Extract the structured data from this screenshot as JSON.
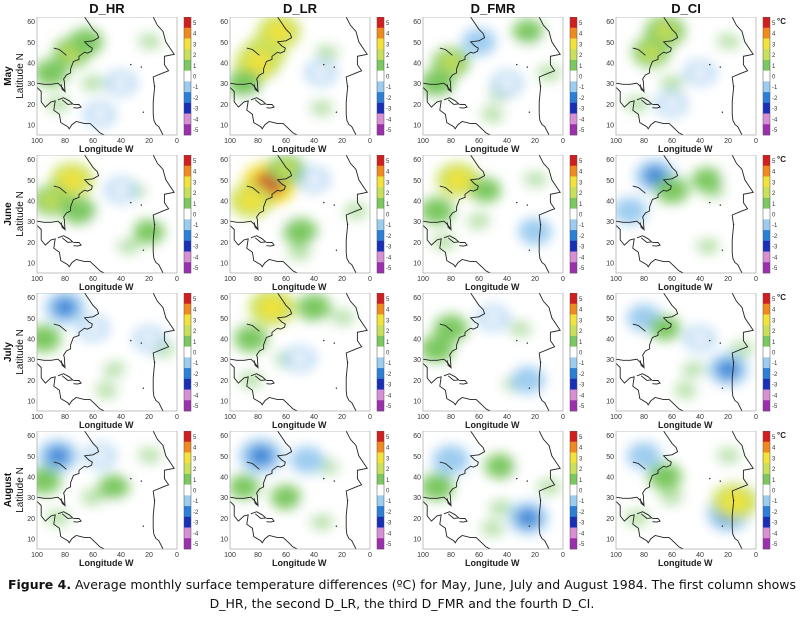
{
  "columns": [
    "D_HR",
    "D_LR",
    "D_FMR",
    "D_CI"
  ],
  "rows": [
    {
      "month": "May",
      "ylabel": "Latitude N"
    },
    {
      "month": "June",
      "ylabel": "Latitude N"
    },
    {
      "month": "July",
      "ylabel": "Latitude N"
    },
    {
      "month": "August",
      "ylabel": "Latitude N"
    }
  ],
  "xlabel": "Longitude  W",
  "lat_ticks": [
    "60",
    "50",
    "40",
    "30",
    "20",
    "10"
  ],
  "lon_ticks": [
    "100",
    "80",
    "60",
    "40",
    "20",
    "0"
  ],
  "colorbar_ticks": [
    "5",
    "4",
    "3",
    "2",
    "1",
    "0",
    "-1",
    "-2",
    "-3",
    "-4",
    "-5"
  ],
  "colorbar_unit": "°C",
  "caption": {
    "label": "Figure 4.",
    "text": " Average monthly surface temperature differences (ºC) for May, June, July and August 1984. The first column shows D_HR, the second D_LR, the third D_FMR and the fourth D_CI."
  },
  "colors": {
    "scale": [
      "#9b2fae",
      "#d98fd6",
      "#1a2fb8",
      "#2b7fd6",
      "#9cccf0",
      "#ffffff",
      "#7cc860",
      "#c8e05a",
      "#f2e23a",
      "#f08a1e",
      "#d21e1e"
    ]
  },
  "chart_data": {
    "type": "heatmap",
    "title": "Average monthly surface temperature differences (ºC), 1984",
    "xlabel": "Longitude W",
    "ylabel": "Latitude N",
    "xlim": [
      100,
      0
    ],
    "ylim": [
      5,
      62
    ],
    "clim": [
      -5,
      5
    ],
    "unit": "°C",
    "panels": [
      {
        "row": "May",
        "column": "D_HR",
        "features": [
          {
            "lon": 75,
            "lat": 45,
            "value": 1.5
          },
          {
            "lon": 90,
            "lat": 35,
            "value": 1
          },
          {
            "lon": 65,
            "lat": 50,
            "value": 1
          },
          {
            "lon": 40,
            "lat": 30,
            "value": -0.5
          },
          {
            "lon": 55,
            "lat": 15,
            "value": -0.5
          }
        ]
      },
      {
        "row": "May",
        "column": "D_LR",
        "features": [
          {
            "lon": 75,
            "lat": 45,
            "value": 2.5
          },
          {
            "lon": 80,
            "lat": 40,
            "value": 3
          },
          {
            "lon": 65,
            "lat": 55,
            "value": 2.5
          },
          {
            "lon": 90,
            "lat": 30,
            "value": 1
          },
          {
            "lon": 35,
            "lat": 35,
            "value": -0.5
          }
        ]
      },
      {
        "row": "May",
        "column": "D_FMR",
        "features": [
          {
            "lon": 80,
            "lat": 40,
            "value": 1.5
          },
          {
            "lon": 90,
            "lat": 30,
            "value": 1
          },
          {
            "lon": 60,
            "lat": 50,
            "value": -1
          },
          {
            "lon": 40,
            "lat": 30,
            "value": -0.5
          },
          {
            "lon": 25,
            "lat": 55,
            "value": 0.5
          }
        ]
      },
      {
        "row": "May",
        "column": "D_CI",
        "features": [
          {
            "lon": 75,
            "lat": 45,
            "value": 1.5
          },
          {
            "lon": 65,
            "lat": 55,
            "value": 2
          },
          {
            "lon": 40,
            "lat": 35,
            "value": -0.5
          },
          {
            "lon": 60,
            "lat": 20,
            "value": -0.5
          }
        ]
      },
      {
        "row": "June",
        "column": "D_HR",
        "features": [
          {
            "lon": 75,
            "lat": 50,
            "value": 2.5
          },
          {
            "lon": 90,
            "lat": 40,
            "value": 1.5
          },
          {
            "lon": 70,
            "lat": 35,
            "value": 1
          },
          {
            "lon": 40,
            "lat": 45,
            "value": -0.5
          },
          {
            "lon": 20,
            "lat": 25,
            "value": 0.5
          }
        ]
      },
      {
        "row": "June",
        "column": "D_LR",
        "features": [
          {
            "lon": 72,
            "lat": 48,
            "value": 4.5
          },
          {
            "lon": 85,
            "lat": 40,
            "value": 2.5
          },
          {
            "lon": 60,
            "lat": 55,
            "value": 1.5
          },
          {
            "lon": 40,
            "lat": 50,
            "value": -0.5
          },
          {
            "lon": 50,
            "lat": 25,
            "value": 1
          }
        ]
      },
      {
        "row": "June",
        "column": "D_FMR",
        "features": [
          {
            "lon": 75,
            "lat": 50,
            "value": 2.5
          },
          {
            "lon": 90,
            "lat": 35,
            "value": 1
          },
          {
            "lon": 55,
            "lat": 45,
            "value": 0.5
          },
          {
            "lon": 20,
            "lat": 25,
            "value": -1
          }
        ]
      },
      {
        "row": "June",
        "column": "D_CI",
        "features": [
          {
            "lon": 72,
            "lat": 52,
            "value": -2
          },
          {
            "lon": 60,
            "lat": 45,
            "value": 1
          },
          {
            "lon": 90,
            "lat": 35,
            "value": -1
          },
          {
            "lon": 35,
            "lat": 50,
            "value": 0.5
          }
        ]
      },
      {
        "row": "July",
        "column": "D_HR",
        "features": [
          {
            "lon": 80,
            "lat": 55,
            "value": -2
          },
          {
            "lon": 95,
            "lat": 40,
            "value": 1
          },
          {
            "lon": 60,
            "lat": 45,
            "value": -0.5
          },
          {
            "lon": 20,
            "lat": 40,
            "value": -0.5
          }
        ]
      },
      {
        "row": "July",
        "column": "D_LR",
        "features": [
          {
            "lon": 70,
            "lat": 55,
            "value": 3
          },
          {
            "lon": 85,
            "lat": 40,
            "value": 1
          },
          {
            "lon": 40,
            "lat": 55,
            "value": 1
          },
          {
            "lon": 50,
            "lat": 30,
            "value": -0.5
          }
        ]
      },
      {
        "row": "July",
        "column": "D_FMR",
        "features": [
          {
            "lon": 80,
            "lat": 45,
            "value": 1
          },
          {
            "lon": 90,
            "lat": 35,
            "value": 1
          },
          {
            "lon": 50,
            "lat": 50,
            "value": -0.5
          },
          {
            "lon": 25,
            "lat": 20,
            "value": -1
          }
        ]
      },
      {
        "row": "July",
        "column": "D_CI",
        "features": [
          {
            "lon": 80,
            "lat": 50,
            "value": -1
          },
          {
            "lon": 65,
            "lat": 45,
            "value": 0.5
          },
          {
            "lon": 20,
            "lat": 25,
            "value": -2
          },
          {
            "lon": 40,
            "lat": 40,
            "value": -0.5
          }
        ]
      },
      {
        "row": "August",
        "column": "D_HR",
        "features": [
          {
            "lon": 85,
            "lat": 50,
            "value": -2
          },
          {
            "lon": 95,
            "lat": 38,
            "value": 1
          },
          {
            "lon": 45,
            "lat": 35,
            "value": 0.5
          },
          {
            "lon": 55,
            "lat": 50,
            "value": -0.5
          }
        ]
      },
      {
        "row": "August",
        "column": "D_LR",
        "features": [
          {
            "lon": 78,
            "lat": 50,
            "value": -2.5
          },
          {
            "lon": 45,
            "lat": 48,
            "value": -1
          },
          {
            "lon": 90,
            "lat": 35,
            "value": 0.5
          },
          {
            "lon": 60,
            "lat": 30,
            "value": 0.5
          }
        ]
      },
      {
        "row": "August",
        "column": "D_FMR",
        "features": [
          {
            "lon": 80,
            "lat": 48,
            "value": -1.5
          },
          {
            "lon": 90,
            "lat": 35,
            "value": 1
          },
          {
            "lon": 45,
            "lat": 45,
            "value": 0.5
          },
          {
            "lon": 25,
            "lat": 20,
            "value": -2
          }
        ]
      },
      {
        "row": "August",
        "column": "D_CI",
        "features": [
          {
            "lon": 80,
            "lat": 50,
            "value": -1
          },
          {
            "lon": 65,
            "lat": 40,
            "value": 1
          },
          {
            "lon": 20,
            "lat": 22,
            "value": -2.5
          },
          {
            "lon": 15,
            "lat": 28,
            "value": 3
          }
        ]
      }
    ]
  }
}
